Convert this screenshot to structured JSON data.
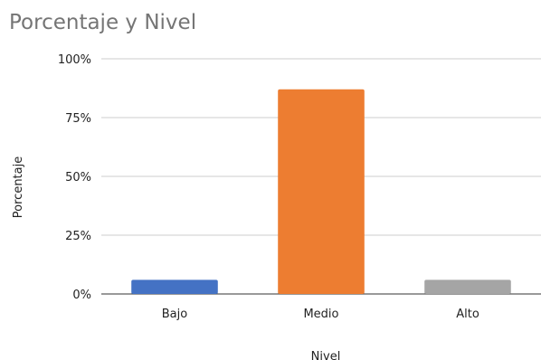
{
  "chart_data": {
    "type": "bar",
    "title": "Porcentaje y Nivel",
    "xlabel": "Nivel",
    "ylabel": "Porcentaje",
    "categories": [
      "Bajo",
      "Medio",
      "Alto"
    ],
    "values": [
      0.06,
      0.87,
      0.06
    ],
    "colors": [
      "#4472c4",
      "#ed7d31",
      "#a5a5a5"
    ],
    "ylim": [
      0,
      1
    ],
    "yticks": [
      {
        "value": 0,
        "label": "0%"
      },
      {
        "value": 0.25,
        "label": "25%"
      },
      {
        "value": 0.5,
        "label": "50%"
      },
      {
        "value": 0.75,
        "label": "75%"
      },
      {
        "value": 1,
        "label": "100%"
      }
    ],
    "grid": true,
    "legend": "none"
  }
}
